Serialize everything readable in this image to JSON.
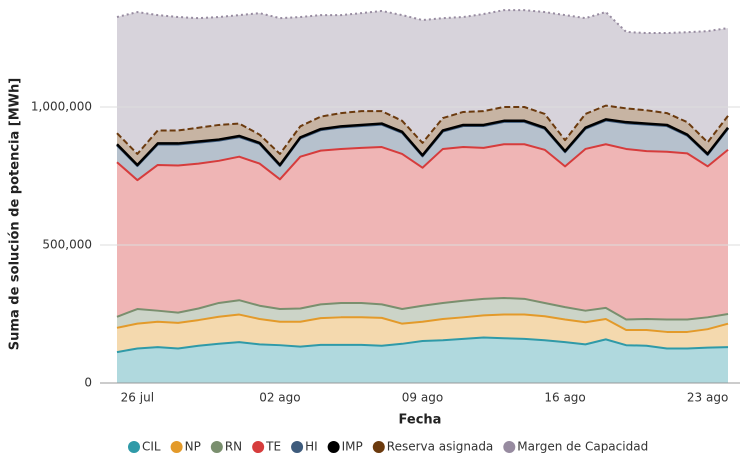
{
  "chart_data": {
    "type": "stacked_area",
    "x_label": "Fecha",
    "y_label": "Suma de solución de potencia [MWh]",
    "categories": [
      null,
      "26 jul",
      null,
      null,
      null,
      null,
      null,
      null,
      "02 ago",
      null,
      null,
      null,
      null,
      null,
      null,
      "09 ago",
      null,
      null,
      null,
      null,
      null,
      null,
      "16 ago",
      null,
      null,
      null,
      null,
      null,
      null,
      "23 ago",
      null
    ],
    "ylim": [
      0,
      1400000
    ],
    "yticks": [
      0,
      {
        "value": 500000,
        "label": "500,000"
      },
      {
        "value": 1000000,
        "label": "1,000,000"
      }
    ],
    "grid": true,
    "legend": "bottom",
    "series": [
      {
        "name": "CIL",
        "color": "#2f9aa8",
        "line_style": "solid",
        "values": [
          112000,
          125000,
          130000,
          125000,
          135000,
          142000,
          148000,
          140000,
          137000,
          132000,
          138000,
          138000,
          138000,
          135000,
          142000,
          152000,
          155000,
          160000,
          165000,
          162000,
          160000,
          155000,
          148000,
          140000,
          158000,
          137000,
          135000,
          125000,
          125000,
          128000,
          130000
        ]
      },
      {
        "name": "NP",
        "color": "#e39a2a",
        "line_style": "solid",
        "values": [
          88000,
          90000,
          92000,
          93000,
          93000,
          98000,
          100000,
          92000,
          85000,
          90000,
          97000,
          100000,
          100000,
          101000,
          73000,
          70000,
          77000,
          78000,
          80000,
          86000,
          88000,
          87000,
          82000,
          80000,
          74000,
          55000,
          57000,
          60000,
          60000,
          67000,
          85000
        ]
      },
      {
        "name": "RN",
        "color": "#7a8f6e",
        "line_style": "solid",
        "values": [
          40000,
          53000,
          40000,
          37000,
          42000,
          50000,
          52000,
          48000,
          46000,
          48000,
          50000,
          52000,
          52000,
          49000,
          53000,
          58000,
          58000,
          60000,
          60000,
          60000,
          57000,
          48000,
          45000,
          42000,
          40000,
          38000,
          40000,
          45000,
          45000,
          43000,
          35000
        ]
      },
      {
        "name": "TE",
        "color": "#d63c3c",
        "line_style": "solid",
        "values": [
          560000,
          467000,
          528000,
          533000,
          525000,
          515000,
          520000,
          515000,
          470000,
          550000,
          557000,
          558000,
          562000,
          570000,
          562000,
          500000,
          558000,
          557000,
          547000,
          557000,
          560000,
          555000,
          510000,
          586000,
          593000,
          618000,
          608000,
          608000,
          602000,
          547000,
          595000
        ]
      },
      {
        "name": "HI",
        "color": "#3e5b7c",
        "line_style": "solid",
        "values": [
          61000,
          51000,
          74000,
          76000,
          76000,
          73000,
          71000,
          71000,
          48000,
          66000,
          74000,
          78000,
          79000,
          81000,
          76000,
          41000,
          63000,
          76000,
          79000,
          81000,
          81000,
          76000,
          51000,
          73000,
          86000,
          93000,
          96000,
          93000,
          64000,
          41000,
          76000
        ]
      },
      {
        "name": "IMP",
        "color": "#000000",
        "line_style": "solid",
        "values": [
          4000,
          4000,
          4000,
          4000,
          4000,
          4000,
          4000,
          4000,
          4000,
          4000,
          4000,
          4000,
          4000,
          4000,
          4000,
          4000,
          4000,
          4000,
          4000,
          4000,
          4000,
          4000,
          4000,
          4000,
          4000,
          4000,
          4000,
          4000,
          4000,
          4000,
          4000
        ]
      },
      {
        "name": "Reserva asignada",
        "color": "#6b3a0e",
        "line_style": "dashed",
        "values": [
          40000,
          40000,
          47000,
          47000,
          50000,
          53000,
          45000,
          30000,
          40000,
          40000,
          45000,
          48000,
          50000,
          45000,
          40000,
          45000,
          45000,
          47000,
          50000,
          50000,
          50000,
          50000,
          40000,
          50000,
          50000,
          50000,
          48000,
          43000,
          45000,
          42000,
          43000
        ]
      },
      {
        "name": "Margen de Capacidad",
        "color": "#978ba0",
        "line_style": "dotted",
        "values": [
          421000,
          514000,
          418000,
          411000,
          397000,
          391000,
          393000,
          440000,
          492000,
          396000,
          368000,
          355000,
          355000,
          363000,
          383000,
          445000,
          362000,
          344000,
          352000,
          351000,
          351000,
          369000,
          453000,
          347000,
          339000,
          277000,
          280000,
          290000,
          326000,
          403000,
          318000
        ]
      }
    ]
  }
}
